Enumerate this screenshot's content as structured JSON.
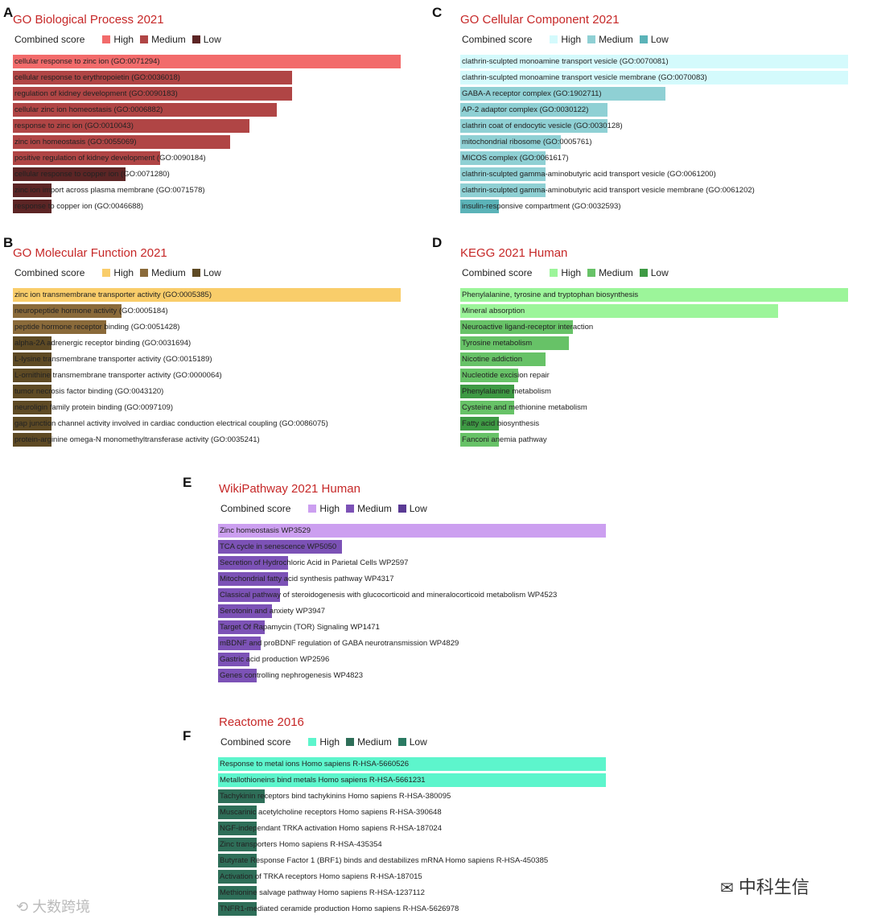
{
  "chart_data": [
    {
      "panel": "A",
      "type": "bar",
      "title": "GO Biological Process 2021",
      "legend": {
        "label": "Combined score",
        "items": [
          "High",
          "Medium",
          "Low"
        ]
      },
      "colors": [
        "#f26b6b",
        "#b04545",
        "#5c2525"
      ],
      "categories": [
        "cellular response to zinc ion (GO:0071294)",
        "cellular response to erythropoietin (GO:0036018)",
        "regulation of kidney development (GO:0090183)",
        "cellular zinc ion homeostasis (GO:0006882)",
        "response to zinc ion (GO:0010043)",
        "zinc ion homeostasis (GO:0055069)",
        "positive regulation of kidney development (GO:0090184)",
        "cellular response to copper ion (GO:0071280)",
        "zinc ion import across plasma membrane (GO:0071578)",
        "response to copper ion (GO:0046688)"
      ],
      "values": [
        100,
        72,
        72,
        68,
        61,
        56,
        38,
        29,
        10,
        10
      ],
      "levels": [
        "High",
        "Medium",
        "Medium",
        "Medium",
        "Medium",
        "Medium",
        "Medium",
        "Low",
        "Low",
        "Low"
      ]
    },
    {
      "panel": "C",
      "type": "bar",
      "title": "GO Cellular Component 2021",
      "legend": {
        "label": "Combined score",
        "items": [
          "High",
          "Medium",
          "Low"
        ]
      },
      "colors": [
        "#d4fafc",
        "#8fd0d4",
        "#5bb3b8"
      ],
      "categories": [
        "clathrin-sculpted monoamine transport vesicle (GO:0070081)",
        "clathrin-sculpted monoamine transport vesicle membrane (GO:0070083)",
        "GABA-A receptor complex (GO:1902711)",
        "AP-2 adaptor complex (GO:0030122)",
        "clathrin coat of endocytic vesicle (GO:0030128)",
        "mitochondrial ribosome (GO:0005761)",
        "MICOS complex (GO:0061617)",
        "clathrin-sculpted gamma-aminobutyric acid transport vesicle (GO:0061200)",
        "clathrin-sculpted gamma-aminobutyric acid transport vesicle membrane (GO:0061202)",
        "insulin-responsive compartment (GO:0032593)"
      ],
      "values": [
        100,
        100,
        53,
        38,
        38,
        26,
        22,
        22,
        22,
        10
      ],
      "levels": [
        "High",
        "High",
        "Medium",
        "Medium",
        "Medium",
        "Medium",
        "Medium",
        "Medium",
        "Medium",
        "Low"
      ]
    },
    {
      "panel": "B",
      "type": "bar",
      "title": "GO Molecular Function 2021",
      "legend": {
        "label": "Combined score",
        "items": [
          "High",
          "Medium",
          "Low"
        ]
      },
      "colors": [
        "#f9cd6a",
        "#8a6a3a",
        "#5e4a24"
      ],
      "categories": [
        "zinc ion transmembrane transporter activity (GO:0005385)",
        "neuropeptide hormone activity (GO:0005184)",
        "peptide hormone receptor binding (GO:0051428)",
        "alpha-2A adrenergic receptor binding (GO:0031694)",
        "L-lysine transmembrane transporter activity (GO:0015189)",
        "L-ornithine transmembrane transporter activity (GO:0000064)",
        "tumor necrosis factor binding (GO:0043120)",
        "neuroligin family protein binding (GO:0097109)",
        "gap junction channel activity involved in cardiac conduction electrical coupling (GO:0086075)",
        "protein-arginine omega-N monomethyltransferase activity (GO:0035241)"
      ],
      "values": [
        100,
        28,
        24,
        10,
        10,
        10,
        10,
        10,
        10,
        10
      ],
      "levels": [
        "High",
        "Medium",
        "Medium",
        "Low",
        "Low",
        "Low",
        "Low",
        "Low",
        "Low",
        "Low"
      ]
    },
    {
      "panel": "D",
      "type": "bar",
      "title": "KEGG 2021 Human",
      "legend": {
        "label": "Combined score",
        "items": [
          "High",
          "Medium",
          "Low"
        ]
      },
      "colors": [
        "#9cf59a",
        "#67c267",
        "#3e9a44"
      ],
      "categories": [
        "Phenylalanine, tyrosine and tryptophan biosynthesis",
        "Mineral absorption",
        "Neuroactive ligand-receptor interaction",
        "Tyrosine metabolism",
        "Nicotine addiction",
        "Nucleotide excision repair",
        "Phenylalanine metabolism",
        "Cysteine and methionine metabolism",
        "Fatty acid biosynthesis",
        "Fanconi anemia pathway"
      ],
      "values": [
        100,
        82,
        29,
        28,
        22,
        15,
        14,
        14,
        10,
        10
      ],
      "levels": [
        "High",
        "High",
        "Medium",
        "Medium",
        "Medium",
        "Medium",
        "Low",
        "Medium",
        "Low",
        "Medium"
      ]
    },
    {
      "panel": "E",
      "type": "bar",
      "title": "WikiPathway 2021 Human",
      "legend": {
        "label": "Combined score",
        "items": [
          "High",
          "Medium",
          "Low"
        ]
      },
      "colors": [
        "#cc9ff0",
        "#7c52b6",
        "#5a3a94"
      ],
      "categories": [
        "Zinc homeostasis WP3529",
        "TCA cycle in senescence WP5050",
        "Secretion of Hydrochloric Acid in Parietal Cells WP2597",
        "Mitochondrial fatty acid synthesis pathway WP4317",
        "Classical pathway of steroidogenesis with glucocorticoid and mineralocorticoid metabolism WP4523",
        "Serotonin and anxiety WP3947",
        "Target Of Rapamycin (TOR) Signaling WP1471",
        "mBDNF and proBDNF regulation of GABA neurotransmission WP4829",
        "Gastric acid production WP2596",
        "Genes controlling nephrogenesis WP4823"
      ],
      "values": [
        100,
        32,
        18,
        18,
        16,
        14,
        12,
        11,
        8,
        10
      ],
      "levels": [
        "High",
        "Medium",
        "Medium",
        "Medium",
        "Medium",
        "Medium",
        "Medium",
        "Medium",
        "Medium",
        "Medium"
      ]
    },
    {
      "panel": "F",
      "type": "bar",
      "title": "Reactome 2016",
      "legend": {
        "label": "Combined score",
        "items": [
          "High",
          "Medium",
          "Low"
        ]
      },
      "colors": [
        "#5df5cc",
        "#2e6e58",
        "#2a7a62"
      ],
      "categories": [
        "Response to metal ions Homo sapiens R-HSA-5660526",
        "Metallothioneins bind metals Homo sapiens R-HSA-5661231",
        "Tachykinin receptors bind tachykinins Homo sapiens R-HSA-380095",
        "Muscarinic acetylcholine receptors Homo sapiens R-HSA-390648",
        "NGF-independant TRKA activation Homo sapiens R-HSA-187024",
        "Zinc transporters Homo sapiens R-HSA-435354",
        "Butyrate Response Factor 1 (BRF1) binds and destabilizes mRNA Homo sapiens R-HSA-450385",
        "Activation of TRKA receptors Homo sapiens R-HSA-187015",
        "Methionine salvage pathway Homo sapiens R-HSA-1237112",
        "TNFR1-mediated ceramide production Homo sapiens R-HSA-5626978"
      ],
      "values": [
        100,
        100,
        12,
        10,
        10,
        10,
        10,
        10,
        10,
        10
      ],
      "levels": [
        "High",
        "High",
        "Medium",
        "Medium",
        "Medium",
        "Medium",
        "Medium",
        "Medium",
        "Medium",
        "Medium"
      ]
    }
  ],
  "watermarks": {
    "left": "大数跨境",
    "right": "中科生信"
  }
}
